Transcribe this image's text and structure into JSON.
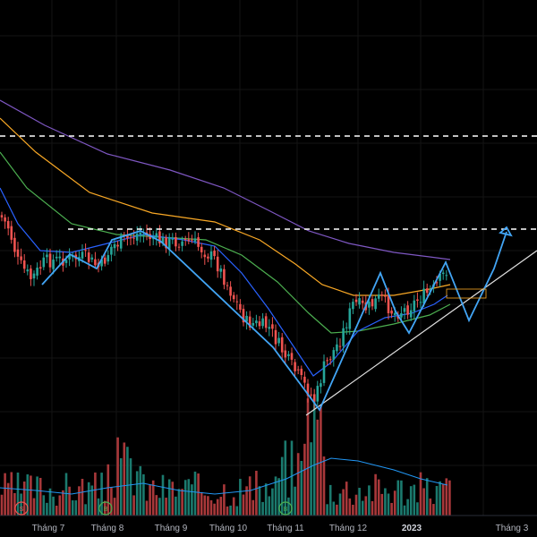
{
  "colors": {
    "background": "#000000",
    "grid": "#141414",
    "candle_up": "#26a69a",
    "candle_down": "#ef5350",
    "ma_fast": "#2962ff",
    "ma_green": "#4caf50",
    "ma_yellow": "#f9a825",
    "ma_purple": "#7e57c2",
    "pattern_line": "#42a5f5",
    "trendline": "#e0e0e0",
    "dashed_level": "#ffffff",
    "volume_ma": "#2196f3",
    "signal_green": "#4caf50",
    "signal_red": "#ef5350"
  },
  "x_axis": {
    "ticks": [
      {
        "label": "Tháng 7",
        "bold": false
      },
      {
        "label": "Tháng 8",
        "bold": false
      },
      {
        "label": "Tháng 9",
        "bold": false
      },
      {
        "label": "Tháng 10",
        "bold": false
      },
      {
        "label": "Tháng 11",
        "bold": false
      },
      {
        "label": "Tháng 12",
        "bold": false
      },
      {
        "label": "2023",
        "bold": true
      },
      {
        "label": "Tháng 3",
        "bold": false
      }
    ]
  },
  "signal_markers": [
    {
      "letter": "S",
      "color": "red"
    },
    {
      "letter": "B",
      "color": "green"
    },
    {
      "letter": "B",
      "color": "green"
    }
  ],
  "chart_data": {
    "type": "candlestick",
    "grid": true,
    "x": [
      "Tháng 7",
      "Tháng 8",
      "Tháng 9",
      "Tháng 10",
      "Tháng 11",
      "Tháng 12",
      "2023",
      "Tháng 3"
    ],
    "series": [
      {
        "type": "candlestick"
      },
      {
        "type": "moving_average",
        "color": "#2962ff"
      },
      {
        "type": "moving_average",
        "color": "#4caf50"
      },
      {
        "type": "moving_average",
        "color": "#f9a825"
      },
      {
        "type": "moving_average",
        "color": "#7e57c2"
      },
      {
        "type": "volume"
      }
    ],
    "annotations": [
      {
        "type": "horizontal_dashed_line",
        "level": "upper"
      },
      {
        "type": "horizontal_dashed_line",
        "level": "lower"
      },
      {
        "type": "zigzag_projection_arrow"
      },
      {
        "type": "rising_trendline"
      }
    ]
  }
}
